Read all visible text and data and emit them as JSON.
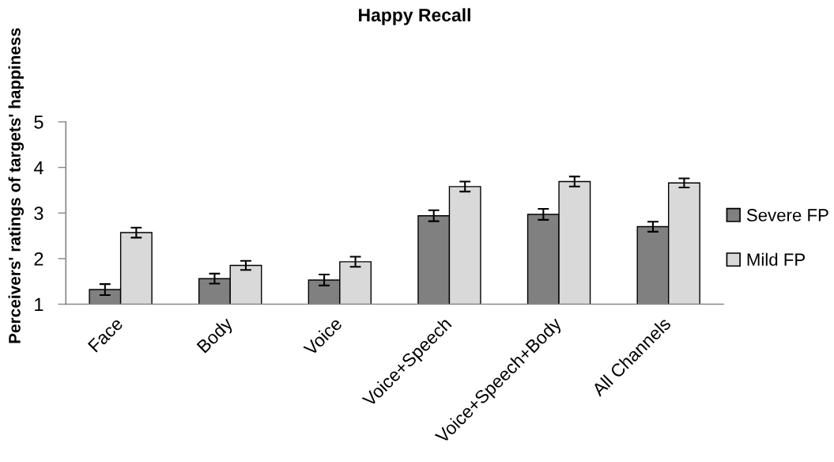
{
  "chart_data": {
    "type": "bar",
    "title": "Happy Recall",
    "ylabel": "Perceivers' ratings of targets' happiness",
    "categories": [
      "Face",
      "Body",
      "Voice",
      "Voice+Speech",
      "Voice+Speech+Body",
      "All Channels"
    ],
    "series": [
      {
        "name": "Severe FP",
        "color": "#808080",
        "values": [
          1.32,
          1.56,
          1.53,
          2.94,
          2.97,
          2.7
        ],
        "errors": [
          0.12,
          0.11,
          0.12,
          0.12,
          0.12,
          0.11
        ]
      },
      {
        "name": "Mild FP",
        "color": "#d9d9d9",
        "values": [
          2.57,
          1.85,
          1.93,
          3.58,
          3.69,
          3.66
        ],
        "errors": [
          0.11,
          0.1,
          0.11,
          0.11,
          0.11,
          0.1
        ]
      }
    ],
    "ylim": [
      1,
      5
    ],
    "yticks": [
      1,
      2,
      3,
      4,
      5
    ],
    "grid": false,
    "legend": "right"
  }
}
